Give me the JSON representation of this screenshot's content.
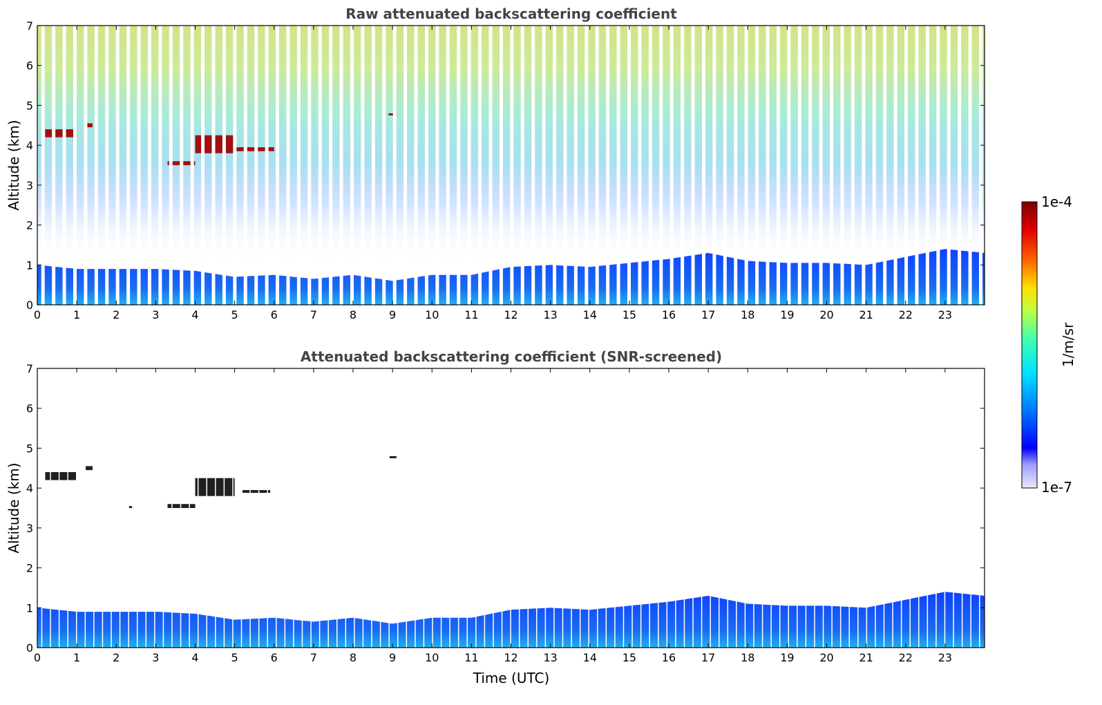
{
  "chart_data": [
    {
      "type": "heatmap",
      "title": "Raw attenuated backscattering coefficient",
      "xlabel": "",
      "ylabel": "Altitude (km)",
      "xlim": [
        0,
        24
      ],
      "ylim": [
        0,
        7
      ],
      "xticks": [
        0,
        1,
        2,
        3,
        4,
        5,
        6,
        7,
        8,
        9,
        10,
        11,
        12,
        13,
        14,
        15,
        16,
        17,
        18,
        19,
        20,
        21,
        22,
        23
      ],
      "yticks": [
        0,
        1,
        2,
        3,
        4,
        5,
        6,
        7
      ],
      "boundary_layer_top_km": [
        [
          0,
          1.0
        ],
        [
          1,
          0.9
        ],
        [
          2,
          0.9
        ],
        [
          3,
          0.9
        ],
        [
          4,
          0.85
        ],
        [
          5,
          0.7
        ],
        [
          6,
          0.75
        ],
        [
          7,
          0.65
        ],
        [
          8,
          0.75
        ],
        [
          9,
          0.6
        ],
        [
          10,
          0.75
        ],
        [
          11,
          0.75
        ],
        [
          12,
          0.95
        ],
        [
          13,
          1.0
        ],
        [
          14,
          0.95
        ],
        [
          15,
          1.05
        ],
        [
          16,
          1.15
        ],
        [
          17,
          1.3
        ],
        [
          18,
          1.1
        ],
        [
          19,
          1.05
        ],
        [
          20,
          1.05
        ],
        [
          21,
          1.0
        ],
        [
          22,
          1.2
        ],
        [
          23,
          1.4
        ],
        [
          24,
          1.3
        ]
      ],
      "cloud_layers": [
        {
          "x": [
            0.2,
            1.0
          ],
          "y": [
            4.2,
            4.4
          ]
        },
        {
          "x": [
            1.2,
            1.4
          ],
          "y": [
            4.45,
            4.55
          ]
        },
        {
          "x": [
            3.3,
            4.0
          ],
          "y": [
            3.5,
            3.6
          ]
        },
        {
          "x": [
            4.0,
            5.0
          ],
          "y": [
            3.8,
            4.25
          ]
        },
        {
          "x": [
            5.0,
            6.0
          ],
          "y": [
            3.85,
            3.95
          ]
        },
        {
          "x": [
            8.9,
            9.1
          ],
          "y": [
            4.75,
            4.8
          ]
        }
      ],
      "gap_interval_hours": 0.27,
      "grid": false
    },
    {
      "type": "heatmap",
      "title": "Attenuated backscattering coefficient (SNR-screened)",
      "xlabel": "Time (UTC)",
      "ylabel": "Altitude (km)",
      "xlim": [
        0,
        24
      ],
      "ylim": [
        0,
        7
      ],
      "xticks": [
        0,
        1,
        2,
        3,
        4,
        5,
        6,
        7,
        8,
        9,
        10,
        11,
        12,
        13,
        14,
        15,
        16,
        17,
        18,
        19,
        20,
        21,
        22,
        23
      ],
      "yticks": [
        0,
        1,
        2,
        3,
        4,
        5,
        6,
        7
      ],
      "boundary_layer_top_km": [
        [
          0,
          1.0
        ],
        [
          1,
          0.9
        ],
        [
          2,
          0.9
        ],
        [
          3,
          0.9
        ],
        [
          4,
          0.85
        ],
        [
          5,
          0.7
        ],
        [
          6,
          0.75
        ],
        [
          7,
          0.65
        ],
        [
          8,
          0.75
        ],
        [
          9,
          0.6
        ],
        [
          10,
          0.75
        ],
        [
          11,
          0.75
        ],
        [
          12,
          0.95
        ],
        [
          13,
          1.0
        ],
        [
          14,
          0.95
        ],
        [
          15,
          1.05
        ],
        [
          16,
          1.15
        ],
        [
          17,
          1.3
        ],
        [
          18,
          1.1
        ],
        [
          19,
          1.05
        ],
        [
          20,
          1.05
        ],
        [
          21,
          1.0
        ],
        [
          22,
          1.2
        ],
        [
          23,
          1.4
        ],
        [
          24,
          1.3
        ]
      ],
      "cloud_layers": [
        {
          "x": [
            0.2,
            1.0
          ],
          "y": [
            4.2,
            4.4
          ]
        },
        {
          "x": [
            1.2,
            1.4
          ],
          "y": [
            4.45,
            4.55
          ]
        },
        {
          "x": [
            2.3,
            2.4
          ],
          "y": [
            3.5,
            3.55
          ]
        },
        {
          "x": [
            3.3,
            4.0
          ],
          "y": [
            3.5,
            3.6
          ]
        },
        {
          "x": [
            4.0,
            5.0
          ],
          "y": [
            3.8,
            4.25
          ]
        },
        {
          "x": [
            5.2,
            5.9
          ],
          "y": [
            3.88,
            3.95
          ]
        },
        {
          "x": [
            8.9,
            9.1
          ],
          "y": [
            4.75,
            4.8
          ]
        }
      ],
      "grid": false
    }
  ],
  "colorbar": {
    "label": "1/m/sr",
    "max_label": "1e-4",
    "min_label": "1e-7",
    "scale": "log",
    "range": [
      1e-07,
      0.0001
    ],
    "colormap": [
      "#e8e8f8",
      "#0000ff",
      "#0080ff",
      "#00e0ff",
      "#40ffb0",
      "#c0ff40",
      "#ffe000",
      "#ff6000",
      "#e00000",
      "#800000"
    ]
  }
}
